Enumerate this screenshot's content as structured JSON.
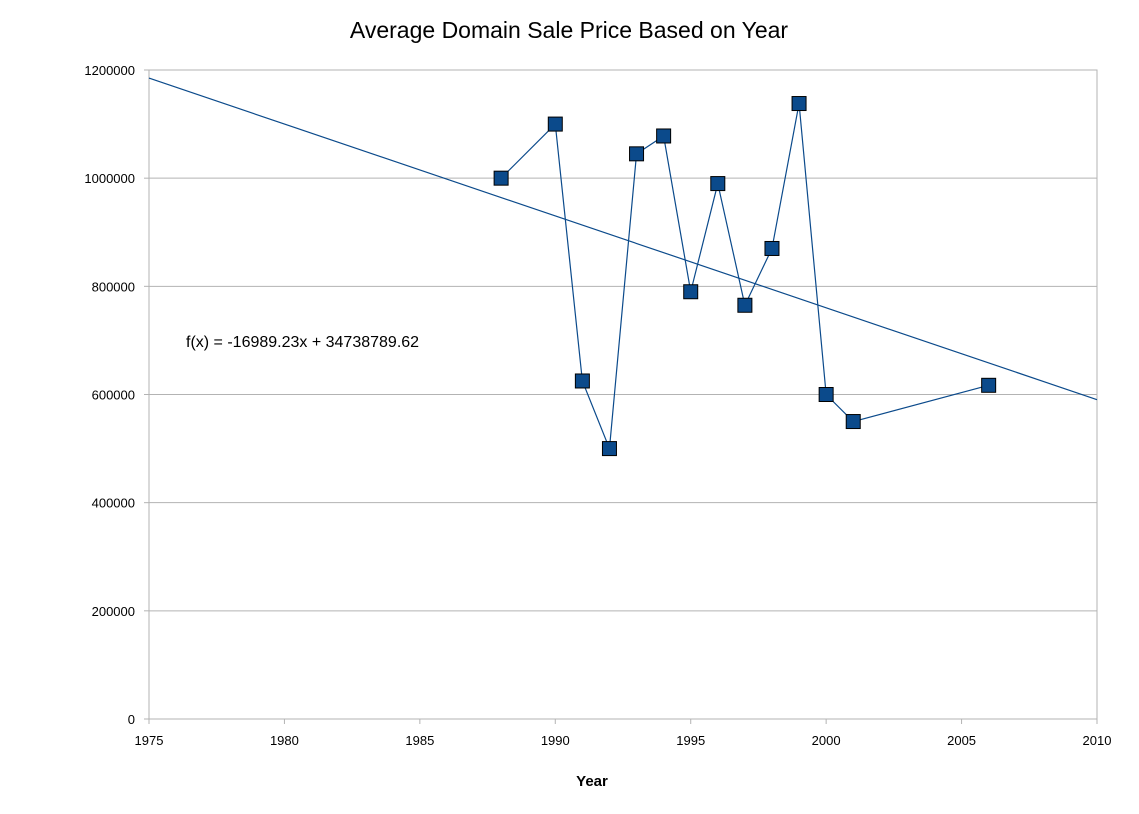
{
  "chart_data": {
    "type": "scatter",
    "title": "Average Domain Sale Price Based on Year",
    "xlabel": "Year",
    "ylabel": "",
    "xlim": [
      1975,
      2010
    ],
    "ylim": [
      0,
      1200000
    ],
    "x_ticks": [
      "1975",
      "1980",
      "1985",
      "1990",
      "1995",
      "2000",
      "2005",
      "2010"
    ],
    "y_ticks": [
      "0",
      "200000",
      "400000",
      "600000",
      "800000",
      "1000000",
      "1200000"
    ],
    "grid": "horizontal",
    "series": [
      {
        "x": [
          1988,
          1990,
          1991,
          1992,
          1993,
          1994,
          1995,
          1996,
          1997,
          1998,
          1999,
          2000,
          2001,
          2006
        ],
        "y": [
          1000000,
          1100000,
          625000,
          500000,
          1045000,
          1078000,
          790000,
          990000,
          765000,
          870000,
          1138000,
          600000,
          550000,
          617000
        ],
        "color": "#0b4a8b",
        "marker": "square",
        "connected": true
      }
    ],
    "trendline": {
      "slope": -16989.23,
      "intercept": 34738789.62,
      "color": "#0b4a8b",
      "label": "f(x) = -16989.23x  + 34738789.62"
    }
  }
}
